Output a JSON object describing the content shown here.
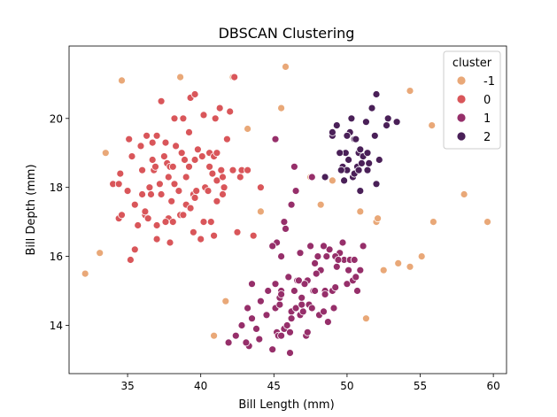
{
  "chart_data": {
    "type": "scatter",
    "title": "DBSCAN Clustering",
    "xlabel": "Bill Length (mm)",
    "ylabel": "Bill Depth (mm)",
    "xlim": [
      31.0,
      60.9
    ],
    "ylim": [
      12.6,
      22.1
    ],
    "xticks": [
      35,
      40,
      45,
      50,
      55,
      60
    ],
    "yticks": [
      14,
      16,
      18,
      20
    ],
    "grid": false,
    "legend": {
      "title": "cluster",
      "placement": "top-right",
      "entries": [
        {
          "label": "-1",
          "color": "#e9a878"
        },
        {
          "label": "0",
          "color": "#d9565a"
        },
        {
          "label": "1",
          "color": "#962f6a"
        },
        {
          "label": "2",
          "color": "#4a2058"
        }
      ]
    },
    "series": [
      {
        "name": "-1",
        "color": "#e9a878",
        "points": [
          [
            32.1,
            15.5
          ],
          [
            33.1,
            16.1
          ],
          [
            33.5,
            19.0
          ],
          [
            34.6,
            21.1
          ],
          [
            38.6,
            21.2
          ],
          [
            42.2,
            21.2
          ],
          [
            43.2,
            19.7
          ],
          [
            44.1,
            17.3
          ],
          [
            45.5,
            20.3
          ],
          [
            45.8,
            21.5
          ],
          [
            47.5,
            18.3
          ],
          [
            48.2,
            17.5
          ],
          [
            49.0,
            18.2
          ],
          [
            50.9,
            17.3
          ],
          [
            51.3,
            14.2
          ],
          [
            52.0,
            17.0
          ],
          [
            52.1,
            17.1
          ],
          [
            52.5,
            15.6
          ],
          [
            53.5,
            15.8
          ],
          [
            54.3,
            15.7
          ],
          [
            54.3,
            20.8
          ],
          [
            55.1,
            16.0
          ],
          [
            55.8,
            19.8
          ],
          [
            55.9,
            17.0
          ],
          [
            58.0,
            17.8
          ],
          [
            59.6,
            17.0
          ],
          [
            40.9,
            13.7
          ],
          [
            41.7,
            14.7
          ]
        ]
      },
      {
        "name": "0",
        "color": "#d9565a",
        "points": [
          [
            34.0,
            18.1
          ],
          [
            34.4,
            18.1
          ],
          [
            34.5,
            18.4
          ],
          [
            34.4,
            17.1
          ],
          [
            34.6,
            17.2
          ],
          [
            35.0,
            17.9
          ],
          [
            35.1,
            19.4
          ],
          [
            35.3,
            18.9
          ],
          [
            35.5,
            16.2
          ],
          [
            35.2,
            15.9
          ],
          [
            35.7,
            16.9
          ],
          [
            35.5,
            17.5
          ],
          [
            35.9,
            19.2
          ],
          [
            36.0,
            18.5
          ],
          [
            36.2,
            17.2
          ],
          [
            36.0,
            17.8
          ],
          [
            36.4,
            17.1
          ],
          [
            36.5,
            18.0
          ],
          [
            36.6,
            17.8
          ],
          [
            36.7,
            18.8
          ],
          [
            36.7,
            19.3
          ],
          [
            36.8,
            18.5
          ],
          [
            36.9,
            18.6
          ],
          [
            37.0,
            16.9
          ],
          [
            37.0,
            16.5
          ],
          [
            37.2,
            18.1
          ],
          [
            37.3,
            17.8
          ],
          [
            37.3,
            20.5
          ],
          [
            37.5,
            18.9
          ],
          [
            37.6,
            19.3
          ],
          [
            37.7,
            18.7
          ],
          [
            37.8,
            18.3
          ],
          [
            37.9,
            18.6
          ],
          [
            37.8,
            17.1
          ],
          [
            37.6,
            17.0
          ],
          [
            38.1,
            18.6
          ],
          [
            38.1,
            17.0
          ],
          [
            38.2,
            18.1
          ],
          [
            38.2,
            20.0
          ],
          [
            38.3,
            19.2
          ],
          [
            38.5,
            17.9
          ],
          [
            38.6,
            17.2
          ],
          [
            38.7,
            19.0
          ],
          [
            38.8,
            17.2
          ],
          [
            38.8,
            20.0
          ],
          [
            38.9,
            18.8
          ],
          [
            39.0,
            17.5
          ],
          [
            39.2,
            18.6
          ],
          [
            39.2,
            19.6
          ],
          [
            39.3,
            20.6
          ],
          [
            39.5,
            17.8
          ],
          [
            39.5,
            16.7
          ],
          [
            39.6,
            17.7
          ],
          [
            39.6,
            18.8
          ],
          [
            39.6,
            20.7
          ],
          [
            39.7,
            17.9
          ],
          [
            39.8,
            19.1
          ],
          [
            40.1,
            18.9
          ],
          [
            40.2,
            17.0
          ],
          [
            40.3,
            18.0
          ],
          [
            40.5,
            17.9
          ],
          [
            40.6,
            18.6
          ],
          [
            40.6,
            19.0
          ],
          [
            40.7,
            17.0
          ],
          [
            40.8,
            18.4
          ],
          [
            40.9,
            16.6
          ],
          [
            40.9,
            18.9
          ],
          [
            41.0,
            20.0
          ],
          [
            41.1,
            17.6
          ],
          [
            41.1,
            18.2
          ],
          [
            41.1,
            19.0
          ],
          [
            41.3,
            20.3
          ],
          [
            41.4,
            18.5
          ],
          [
            41.5,
            18.3
          ],
          [
            41.6,
            18.0
          ],
          [
            41.8,
            19.4
          ],
          [
            42.0,
            20.2
          ],
          [
            42.2,
            18.5
          ],
          [
            42.3,
            21.2
          ],
          [
            42.5,
            16.7
          ],
          [
            42.7,
            18.3
          ],
          [
            42.8,
            18.5
          ],
          [
            43.2,
            18.5
          ],
          [
            43.6,
            16.6
          ],
          [
            44.1,
            18.0
          ],
          [
            37.0,
            19.5
          ],
          [
            36.3,
            19.5
          ],
          [
            39.0,
            18.3
          ],
          [
            40.2,
            20.1
          ],
          [
            41.5,
            17.8
          ],
          [
            36.2,
            17.3
          ],
          [
            38.0,
            17.6
          ],
          [
            37.9,
            16.4
          ],
          [
            39.3,
            17.4
          ],
          [
            40.0,
            16.5
          ]
        ]
      },
      {
        "name": "1",
        "color": "#962f6a",
        "points": [
          [
            41.9,
            13.5
          ],
          [
            42.4,
            13.7
          ],
          [
            42.8,
            14.0
          ],
          [
            43.2,
            14.5
          ],
          [
            43.3,
            13.4
          ],
          [
            43.5,
            15.2
          ],
          [
            43.8,
            13.9
          ],
          [
            43.5,
            14.2
          ],
          [
            44.0,
            13.6
          ],
          [
            44.5,
            14.3
          ],
          [
            44.9,
            13.3
          ],
          [
            45.1,
            14.5
          ],
          [
            45.2,
            13.8
          ],
          [
            45.3,
            13.7
          ],
          [
            45.4,
            14.6
          ],
          [
            45.5,
            13.7
          ],
          [
            45.7,
            13.9
          ],
          [
            46.0,
            15.4
          ],
          [
            46.1,
            13.2
          ],
          [
            46.2,
            14.4
          ],
          [
            46.4,
            15.0
          ],
          [
            46.5,
            14.5
          ],
          [
            46.6,
            15.3
          ],
          [
            46.8,
            14.3
          ],
          [
            47.0,
            14.4
          ],
          [
            47.2,
            13.7
          ],
          [
            47.4,
            14.6
          ],
          [
            47.6,
            14.5
          ],
          [
            47.7,
            15.0
          ],
          [
            47.8,
            15.0
          ],
          [
            48.1,
            14.3
          ],
          [
            48.2,
            15.6
          ],
          [
            48.4,
            14.4
          ],
          [
            48.5,
            15.0
          ],
          [
            48.6,
            16.0
          ],
          [
            48.7,
            14.1
          ],
          [
            48.8,
            16.2
          ],
          [
            49.0,
            15.0
          ],
          [
            49.1,
            14.5
          ],
          [
            49.3,
            15.7
          ],
          [
            49.5,
            16.1
          ],
          [
            49.8,
            15.9
          ],
          [
            50.0,
            15.2
          ],
          [
            50.2,
            15.9
          ],
          [
            50.5,
            15.9
          ],
          [
            50.7,
            15.0
          ],
          [
            51.1,
            16.3
          ],
          [
            45.2,
            16.4
          ],
          [
            45.5,
            15.0
          ],
          [
            45.8,
            16.8
          ],
          [
            46.2,
            17.5
          ],
          [
            46.4,
            18.6
          ],
          [
            46.5,
            17.9
          ],
          [
            47.3,
            15.3
          ],
          [
            47.5,
            16.3
          ],
          [
            47.6,
            18.3
          ],
          [
            48.0,
            16.0
          ],
          [
            48.4,
            16.3
          ],
          [
            49.2,
            16.0
          ],
          [
            49.7,
            16.4
          ],
          [
            50.1,
            15.6
          ],
          [
            50.4,
            15.3
          ],
          [
            44.9,
            16.3
          ],
          [
            45.1,
            15.2
          ],
          [
            45.4,
            14.8
          ],
          [
            46.9,
            14.6
          ],
          [
            47.1,
            15.2
          ],
          [
            47.3,
            13.8
          ],
          [
            47.8,
            15.8
          ],
          [
            49.2,
            15.1
          ],
          [
            50.6,
            15.4
          ],
          [
            45.7,
            17.0
          ],
          [
            46.7,
            15.3
          ],
          [
            44.1,
            14.7
          ],
          [
            43.1,
            13.5
          ],
          [
            45.5,
            14.9
          ],
          [
            46.1,
            13.8
          ],
          [
            48.5,
            14.9
          ],
          [
            49.4,
            15.9
          ],
          [
            46.8,
            16.1
          ],
          [
            45.1,
            19.4
          ],
          [
            46.2,
            14.2
          ],
          [
            50.9,
            15.6
          ],
          [
            47.9,
            15.5
          ],
          [
            44.6,
            15.0
          ],
          [
            45.9,
            14.0
          ],
          [
            46.9,
            14.8
          ],
          [
            45.5,
            16.0
          ]
        ]
      },
      {
        "name": "2",
        "color": "#4a2058",
        "points": [
          [
            49.0,
            19.5
          ],
          [
            49.3,
            19.8
          ],
          [
            49.5,
            19.0
          ],
          [
            49.7,
            18.6
          ],
          [
            49.8,
            18.2
          ],
          [
            49.9,
            19.0
          ],
          [
            50.0,
            18.5
          ],
          [
            50.1,
            18.8
          ],
          [
            50.2,
            19.6
          ],
          [
            50.3,
            20.0
          ],
          [
            50.4,
            18.3
          ],
          [
            50.5,
            19.4
          ],
          [
            50.6,
            19.4
          ],
          [
            50.7,
            18.6
          ],
          [
            50.8,
            19.0
          ],
          [
            50.9,
            19.1
          ],
          [
            51.0,
            18.7
          ],
          [
            51.1,
            18.9
          ],
          [
            51.3,
            19.9
          ],
          [
            51.4,
            18.5
          ],
          [
            51.5,
            18.7
          ],
          [
            51.7,
            20.3
          ],
          [
            51.9,
            19.5
          ],
          [
            52.0,
            18.1
          ],
          [
            52.0,
            20.7
          ],
          [
            52.2,
            18.8
          ],
          [
            52.7,
            19.8
          ],
          [
            53.4,
            19.9
          ],
          [
            49.0,
            19.6
          ],
          [
            50.5,
            18.4
          ],
          [
            48.5,
            18.3
          ],
          [
            49.6,
            18.5
          ],
          [
            50.8,
            18.5
          ],
          [
            51.4,
            19.0
          ],
          [
            52.8,
            20.0
          ],
          [
            50.0,
            19.5
          ],
          [
            49.5,
            19.0
          ],
          [
            50.9,
            17.9
          ]
        ]
      }
    ]
  }
}
